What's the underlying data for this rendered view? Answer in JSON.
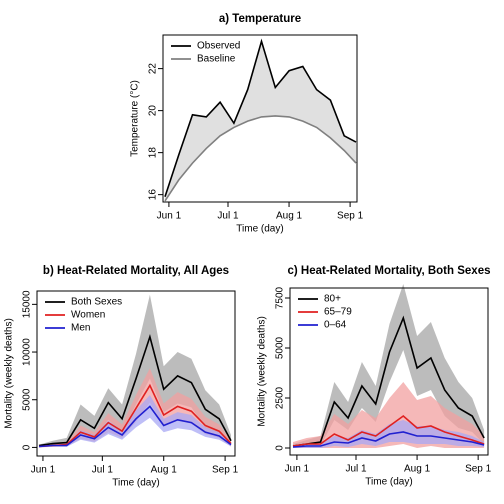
{
  "chart_data": [
    {
      "type": "line",
      "title": "a) Temperature",
      "xlabel": "Time (day)",
      "ylabel": "Temperature (°C)",
      "x": [
        -2,
        5,
        12,
        19,
        26,
        33,
        40,
        47,
        54,
        61,
        68,
        75,
        82,
        89,
        95
      ],
      "series": [
        {
          "name": "Observed",
          "color": "#000000",
          "values": [
            15.9,
            17.9,
            19.8,
            19.7,
            20.4,
            19.4,
            21.0,
            23.3,
            21.1,
            21.9,
            22.1,
            21.0,
            20.5,
            18.8,
            18.5
          ]
        },
        {
          "name": "Baseline",
          "color": "#808080",
          "values": [
            15.7,
            16.7,
            17.5,
            18.2,
            18.8,
            19.2,
            19.5,
            19.7,
            19.75,
            19.7,
            19.5,
            19.2,
            18.7,
            18.1,
            17.5
          ]
        }
      ],
      "shade_between": true,
      "shade_color": "#e0e0e0",
      "xlim": [
        -3,
        95.5
      ],
      "xticks": [
        {
          "value": 0,
          "label": "Jun 1"
        },
        {
          "value": 30,
          "label": "Jul 1"
        },
        {
          "value": 61,
          "label": "Aug 1"
        },
        {
          "value": 92,
          "label": "Sep 1"
        }
      ],
      "ylim": [
        15.65,
        23.6
      ],
      "yticks": [
        16,
        18,
        20,
        22
      ],
      "legend": "top-left"
    },
    {
      "type": "band-line",
      "title": "b) Heat-Related Mortality, All Ages",
      "xlabel": "Time (day)",
      "ylabel": "Mortality (weekly deaths)",
      "x": [
        -2,
        5,
        12,
        19,
        26,
        33,
        40,
        47,
        54,
        61,
        68,
        75,
        82,
        89,
        95
      ],
      "series": [
        {
          "name": "Both Sexes",
          "color": "#000000",
          "band_color": "#a6a6a6",
          "values": [
            200,
            400,
            500,
            2900,
            2000,
            4700,
            3000,
            7200,
            11600,
            6100,
            7500,
            6800,
            4000,
            3000,
            700
          ],
          "upper": [
            300,
            700,
            1000,
            4500,
            3300,
            6200,
            4500,
            9800,
            16000,
            8500,
            10000,
            9300,
            6000,
            4500,
            1300
          ],
          "lower": [
            0,
            100,
            100,
            1300,
            900,
            2900,
            1500,
            4500,
            7200,
            3700,
            4600,
            4200,
            2000,
            1500,
            200
          ]
        },
        {
          "name": "Women",
          "color": "#e02020",
          "band_color": "#f2a0a0",
          "values": [
            100,
            200,
            300,
            1600,
            1100,
            2600,
            1700,
            4100,
            6500,
            3400,
            4300,
            3800,
            2300,
            1700,
            400
          ],
          "upper": [
            200,
            350,
            500,
            2300,
            1600,
            3600,
            2400,
            5500,
            8300,
            4600,
            5800,
            5100,
            3200,
            2400,
            700
          ],
          "lower": [
            0,
            50,
            100,
            900,
            600,
            1600,
            1000,
            2700,
            4700,
            2200,
            2800,
            2500,
            1400,
            1000,
            100
          ]
        },
        {
          "name": "Men",
          "color": "#2020d0",
          "band_color": "#a8a8f4",
          "values": [
            100,
            200,
            200,
            1300,
            900,
            2100,
            1300,
            3000,
            4300,
            2300,
            2900,
            2600,
            1600,
            1200,
            300
          ],
          "upper": [
            200,
            300,
            350,
            1800,
            1300,
            2800,
            1800,
            3900,
            5500,
            3000,
            3700,
            3400,
            2100,
            1600,
            500
          ],
          "lower": [
            0,
            100,
            50,
            800,
            500,
            1400,
            800,
            2100,
            3100,
            1600,
            2000,
            1800,
            1100,
            800,
            100
          ]
        }
      ],
      "xlim": [
        -3,
        97
      ],
      "xticks": [
        {
          "value": 0,
          "label": "Jun 1"
        },
        {
          "value": 30,
          "label": "Jul 1"
        },
        {
          "value": 61,
          "label": "Aug 1"
        },
        {
          "value": 92,
          "label": "Sep 1"
        }
      ],
      "ylim": [
        -900,
        16400
      ],
      "yticks": [
        0,
        5000,
        10000,
        15000
      ],
      "legend": "top-left"
    },
    {
      "type": "band-line",
      "title": "c) Heat-Related Mortality, Both Sexes",
      "xlabel": "Time (day)",
      "ylabel": "Mortality (weekly deaths)",
      "x": [
        -2,
        5,
        12,
        19,
        26,
        33,
        40,
        47,
        54,
        61,
        68,
        75,
        82,
        89,
        95
      ],
      "series": [
        {
          "name": "80+",
          "color": "#000000",
          "band_color": "#a6a6a6",
          "values": [
            100,
            200,
            300,
            2300,
            1500,
            3100,
            2200,
            4800,
            6500,
            4000,
            4500,
            2900,
            2000,
            1600,
            500
          ],
          "upper": [
            200,
            400,
            600,
            3300,
            2300,
            4300,
            3100,
            6200,
            8200,
            5600,
            6300,
            4500,
            3300,
            2500,
            900
          ],
          "lower": [
            0,
            50,
            100,
            1400,
            900,
            2000,
            1300,
            3300,
            4900,
            2600,
            2900,
            1600,
            1000,
            800,
            200
          ]
        },
        {
          "name": "65–79",
          "color": "#e02020",
          "band_color": "#f2a0a0",
          "values": [
            100,
            200,
            200,
            700,
            400,
            800,
            600,
            1100,
            1600,
            1000,
            1100,
            800,
            600,
            400,
            200
          ],
          "upper": [
            300,
            500,
            600,
            1700,
            1200,
            1900,
            1500,
            2500,
            3300,
            2400,
            2600,
            2000,
            1600,
            1200,
            600
          ],
          "lower": [
            0,
            0,
            0,
            0,
            0,
            0,
            0,
            100,
            200,
            0,
            100,
            0,
            0,
            0,
            0
          ]
        },
        {
          "name": "0–64",
          "color": "#2020d0",
          "band_color": "#a8a8f4",
          "values": [
            50,
            100,
            100,
            300,
            250,
            500,
            350,
            700,
            800,
            600,
            600,
            500,
            400,
            300,
            150
          ],
          "upper": [
            150,
            250,
            250,
            600,
            500,
            900,
            700,
            1200,
            1400,
            1100,
            1100,
            900,
            800,
            600,
            300
          ],
          "lower": [
            0,
            0,
            0,
            100,
            50,
            200,
            100,
            300,
            300,
            200,
            200,
            200,
            100,
            100,
            50
          ]
        }
      ],
      "xlim": [
        -3.5,
        97
      ],
      "xticks": [
        {
          "value": 0,
          "label": "Jun 1"
        },
        {
          "value": 30,
          "label": "Jul 1"
        },
        {
          "value": 61,
          "label": "Aug 1"
        },
        {
          "value": 92,
          "label": "Sep 1"
        }
      ],
      "ylim": [
        -350,
        8000
      ],
      "yticks": [
        0,
        2500,
        5000,
        7500
      ],
      "legend": "top-left"
    }
  ]
}
